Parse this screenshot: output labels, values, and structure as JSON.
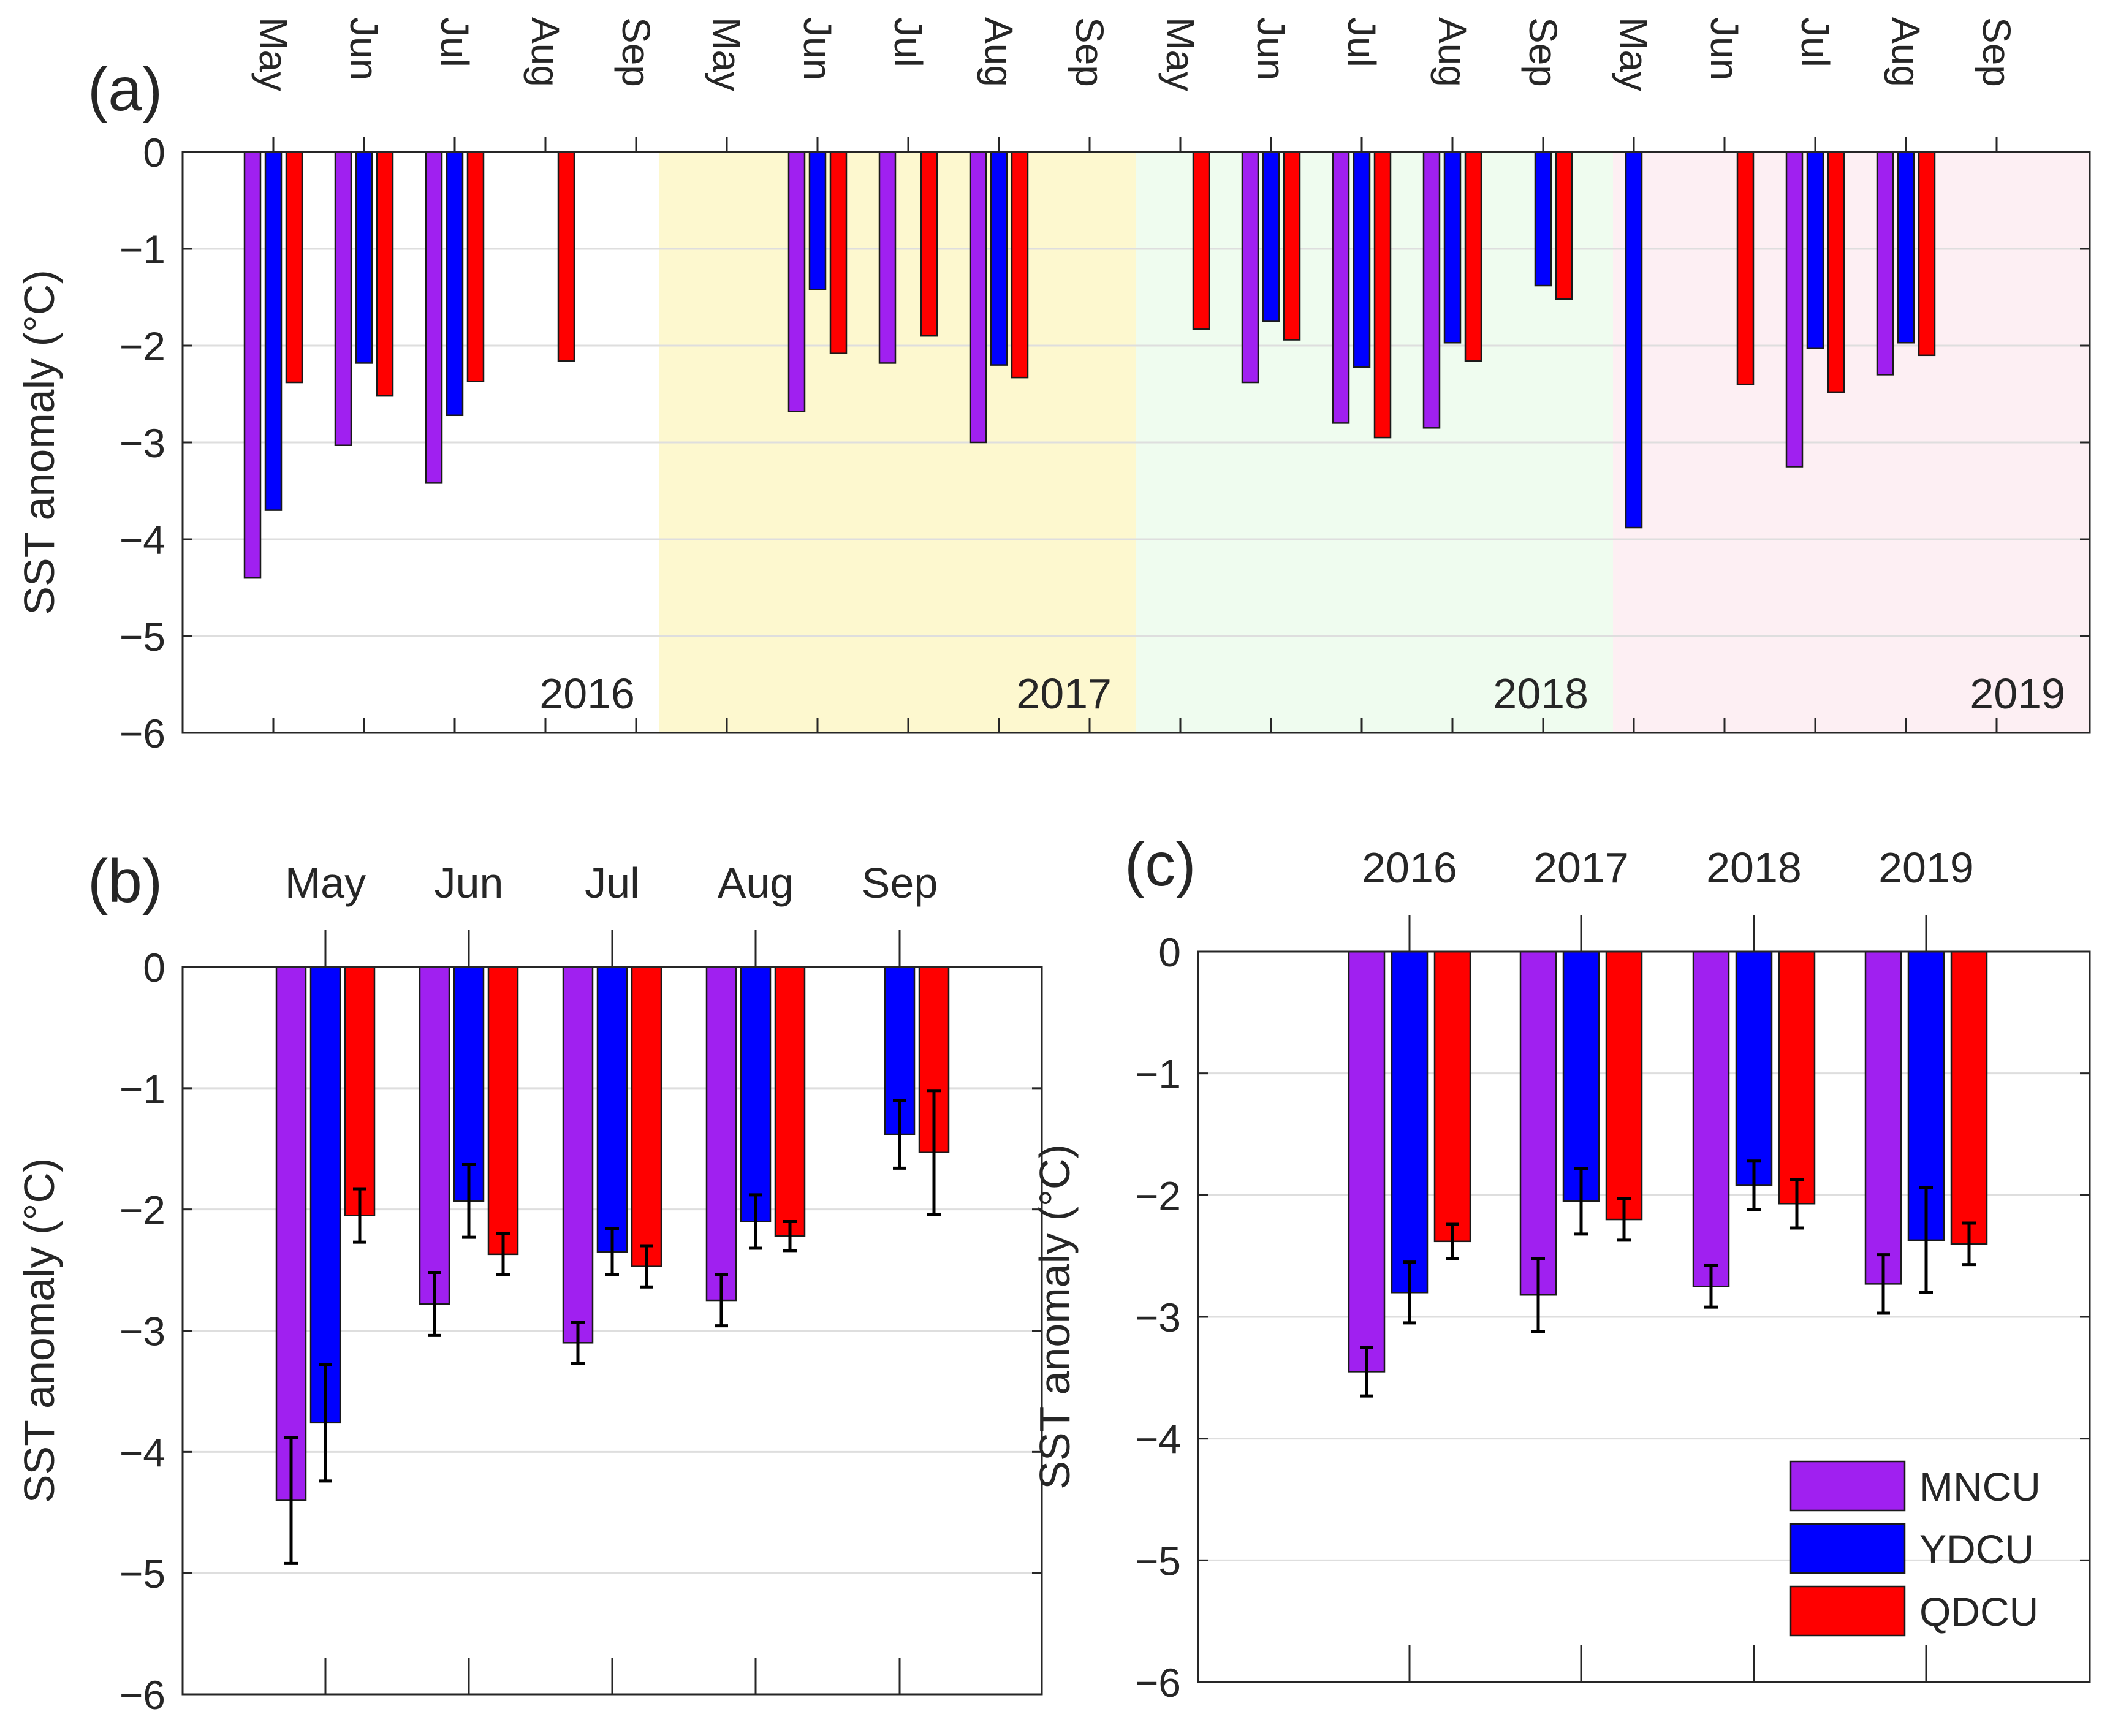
{
  "colors": {
    "MNCU": "#a020f0",
    "YDCU": "#0000ff",
    "QDCU": "#ff0000",
    "year_bg": [
      "#ffffff",
      "#fdf8cf",
      "#effcef",
      "#fdeff3"
    ],
    "axis": "#262626",
    "grid": "#dedede"
  },
  "chart_data": [
    {
      "panel_label": "(a)",
      "type": "bar",
      "ylabel": "SST anomaly (°C)",
      "ylim": [
        -6,
        0
      ],
      "yticks": [
        "0",
        "−1",
        "−2",
        "−3",
        "−4",
        "−5",
        "−6"
      ],
      "grid": true,
      "months": [
        "May",
        "Jun",
        "Jul",
        "Aug",
        "Sep"
      ],
      "years": [
        "2016",
        "2017",
        "2018",
        "2019"
      ],
      "series": [
        {
          "name": "MNCU",
          "values": [
            [
              -4.4,
              -3.03,
              -3.42,
              null,
              null
            ],
            [
              null,
              -2.68,
              -2.18,
              -3.0,
              null
            ],
            [
              null,
              -2.38,
              -2.8,
              -2.85,
              null
            ],
            [
              null,
              null,
              -3.25,
              -2.3,
              null
            ]
          ]
        },
        {
          "name": "YDCU",
          "values": [
            [
              -3.7,
              -2.18,
              -2.72,
              null,
              null
            ],
            [
              null,
              -1.42,
              null,
              -2.2,
              null
            ],
            [
              null,
              -1.75,
              -2.22,
              -1.97,
              -1.38
            ],
            [
              -3.88,
              null,
              -2.03,
              -1.97,
              null
            ]
          ]
        },
        {
          "name": "QDCU",
          "values": [
            [
              -2.38,
              -2.52,
              -2.37,
              -2.16,
              null
            ],
            [
              null,
              -2.08,
              -1.9,
              -2.33,
              null
            ],
            [
              -1.83,
              -1.94,
              -2.95,
              -2.16,
              -1.52
            ],
            [
              null,
              -2.4,
              -2.48,
              -2.1,
              null
            ]
          ]
        }
      ]
    },
    {
      "panel_label": "(b)",
      "type": "bar",
      "ylabel": "SST anomaly (°C)",
      "ylim": [
        -6,
        0
      ],
      "yticks": [
        "0",
        "−1",
        "−2",
        "−3",
        "−4",
        "−5",
        "−6"
      ],
      "grid": true,
      "categories": [
        "May",
        "Jun",
        "Jul",
        "Aug",
        "Sep"
      ],
      "series": [
        {
          "name": "MNCU",
          "values": [
            -4.4,
            -2.78,
            -3.1,
            -2.75,
            null
          ],
          "errors": [
            0.52,
            0.26,
            0.17,
            0.21,
            null
          ]
        },
        {
          "name": "YDCU",
          "values": [
            -3.76,
            -1.93,
            -2.35,
            -2.1,
            -1.38
          ],
          "errors": [
            0.48,
            0.3,
            0.19,
            0.22,
            0.28
          ]
        },
        {
          "name": "QDCU",
          "values": [
            -2.05,
            -2.37,
            -2.47,
            -2.22,
            -1.53
          ],
          "errors": [
            0.22,
            0.17,
            0.17,
            0.12,
            0.51
          ]
        }
      ]
    },
    {
      "panel_label": "(c)",
      "type": "bar",
      "ylabel": "SST anomaly (°C)",
      "ylim": [
        -6,
        0
      ],
      "yticks": [
        "0",
        "−1",
        "−2",
        "−3",
        "−4",
        "−5",
        "−6"
      ],
      "grid": true,
      "categories": [
        "2016",
        "2017",
        "2018",
        "2019"
      ],
      "legend": {
        "placement": "bottom-right",
        "entries": [
          "MNCU",
          "YDCU",
          "QDCU"
        ]
      },
      "series": [
        {
          "name": "MNCU",
          "values": [
            -3.45,
            -2.82,
            -2.75,
            -2.73
          ],
          "errors": [
            0.2,
            0.3,
            0.17,
            0.24
          ]
        },
        {
          "name": "YDCU",
          "values": [
            -2.8,
            -2.05,
            -1.92,
            -2.37
          ],
          "errors": [
            0.25,
            0.27,
            0.2,
            0.43
          ]
        },
        {
          "name": "QDCU",
          "values": [
            -2.38,
            -2.2,
            -2.07,
            -2.4
          ],
          "errors": [
            0.14,
            0.17,
            0.2,
            0.17
          ]
        }
      ]
    }
  ]
}
